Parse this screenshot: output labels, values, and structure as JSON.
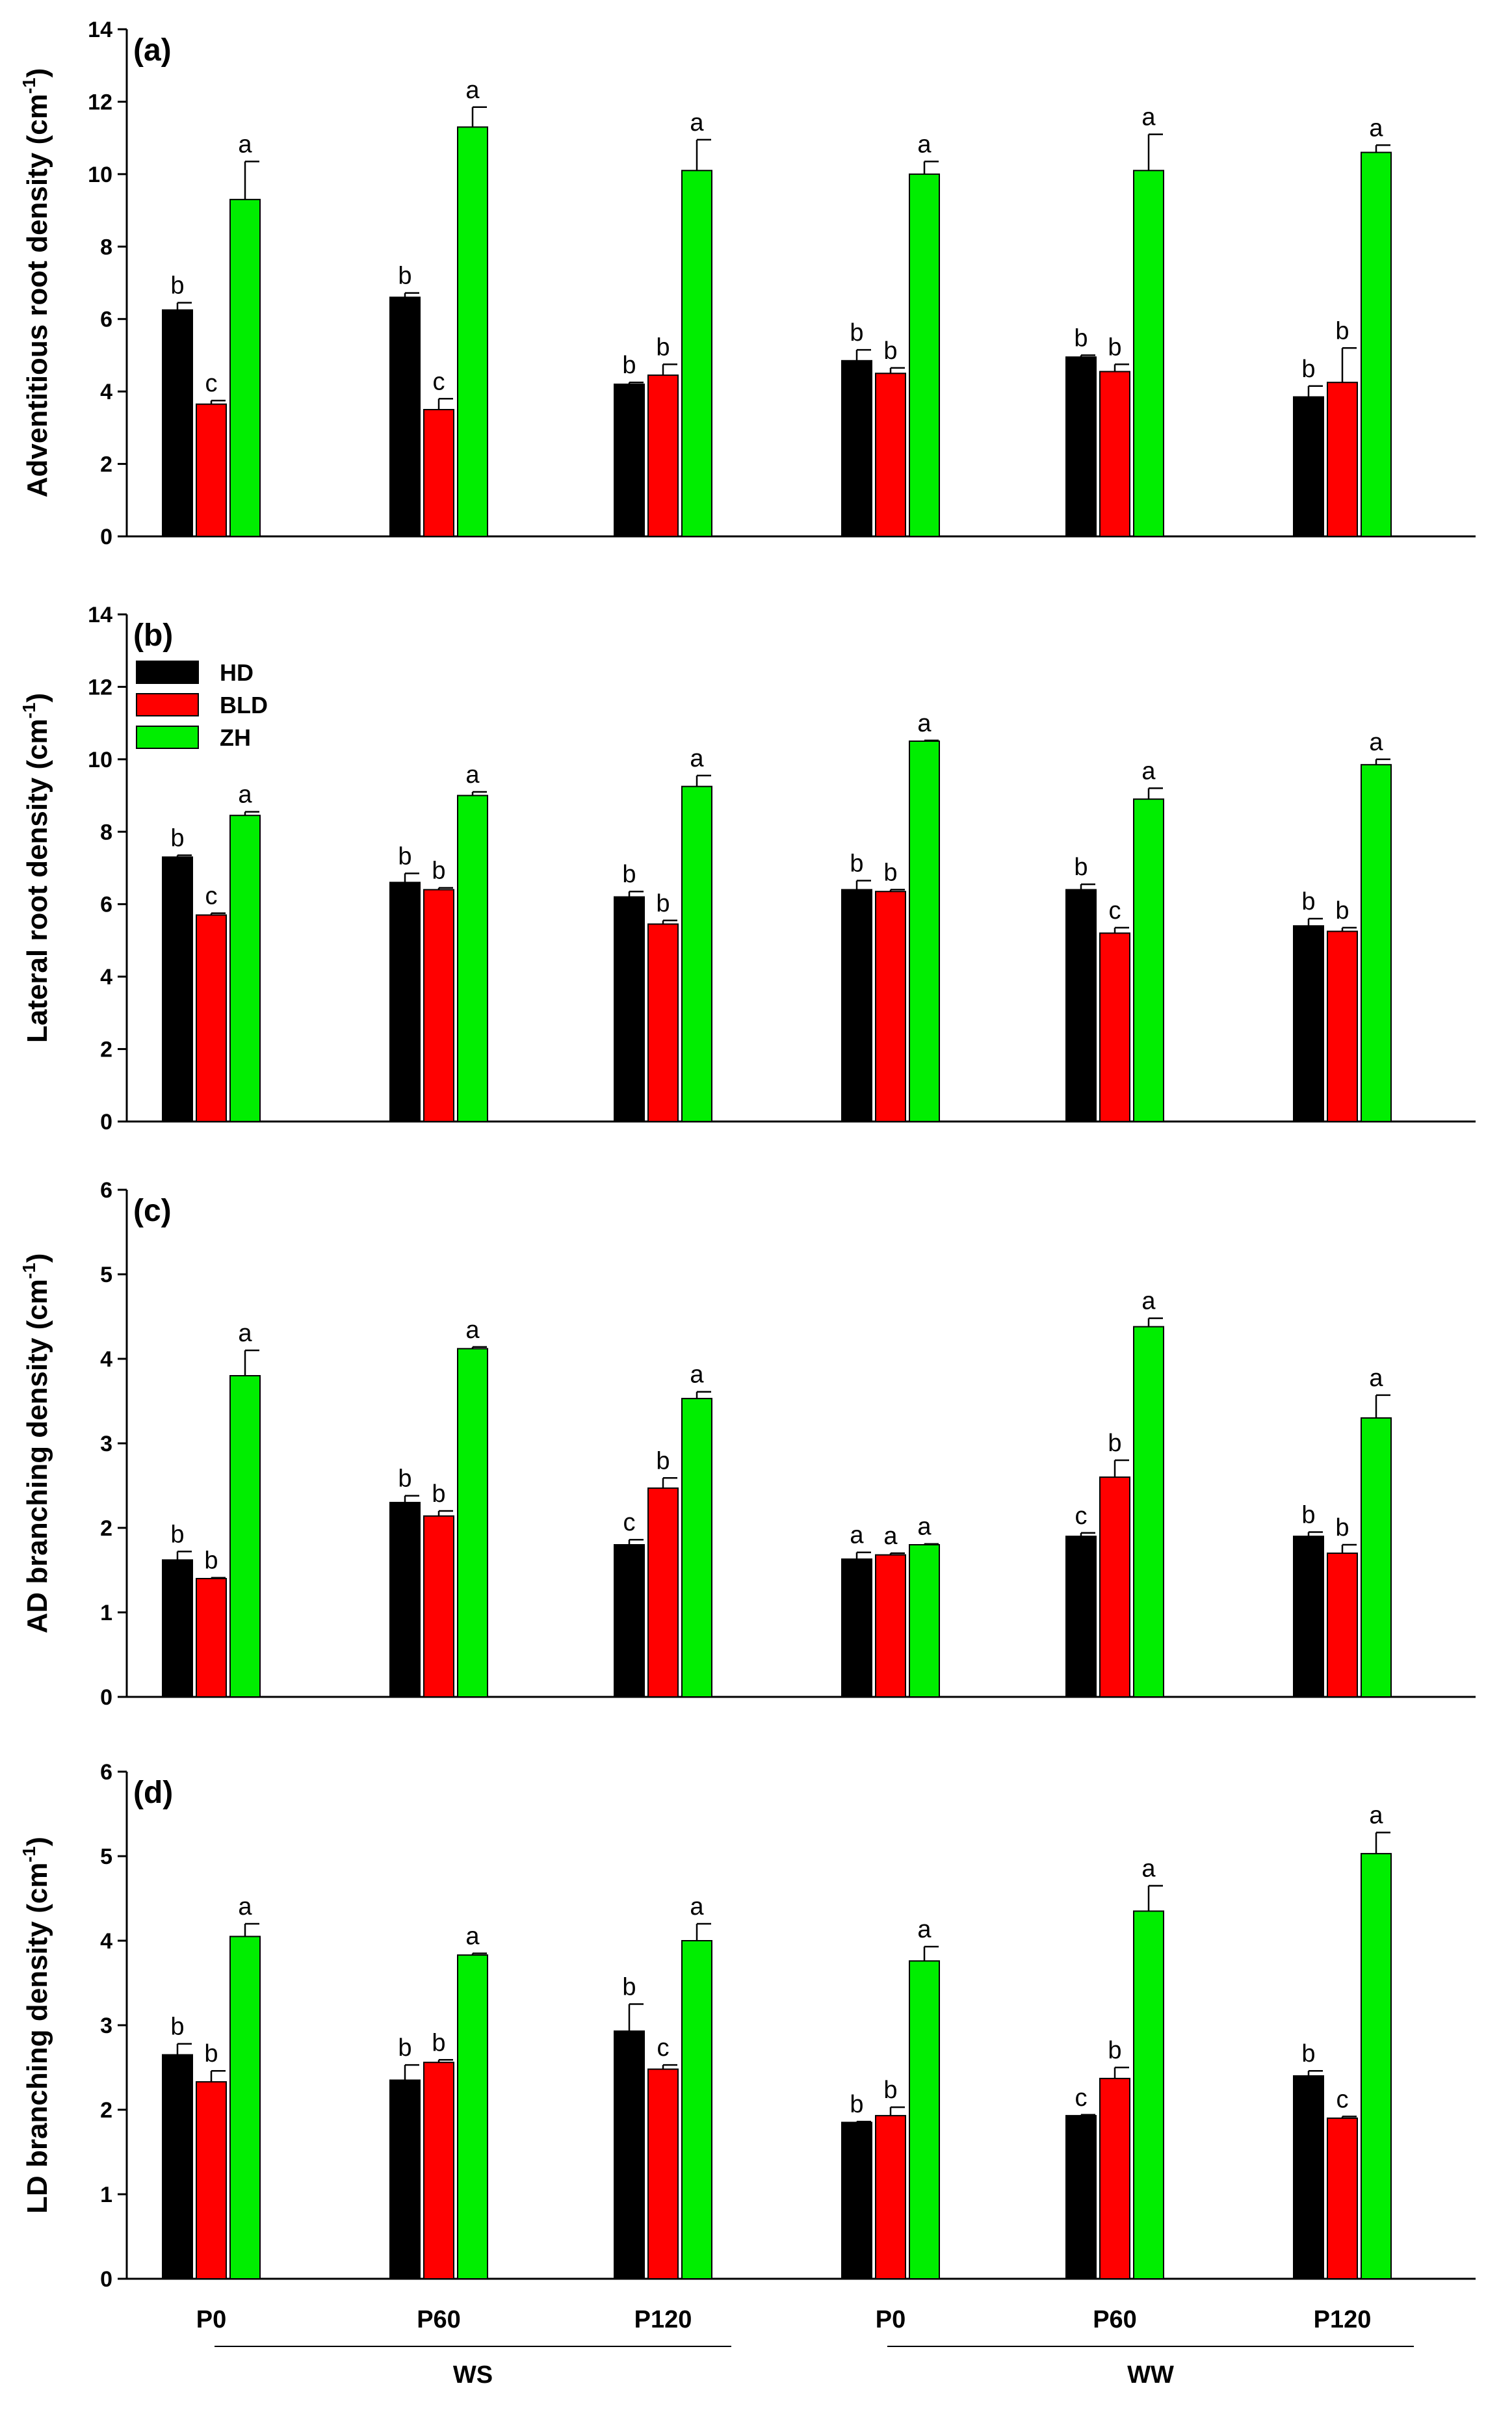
{
  "chart_data": [
    {
      "type": "bar",
      "panel_label": "(a)",
      "ylabel": "Adventitious root density (cm",
      "ylabel_sup": "-1",
      "ylabel_close": ")",
      "ylim": [
        0,
        14
      ],
      "yticks": [
        "0",
        "2",
        "4",
        "6",
        "8",
        "10",
        "12",
        "14"
      ],
      "categories": [
        "P0",
        "P60",
        "P120",
        "P0",
        "P60",
        "P120"
      ],
      "series": [
        {
          "name": "HD",
          "values": [
            6.25,
            6.6,
            4.2,
            4.85,
            4.95,
            3.85
          ],
          "errors": [
            0.2,
            0.12,
            0.05,
            0.3,
            0.05,
            0.3
          ],
          "letters": [
            "b",
            "b",
            "b",
            "b",
            "b",
            "b"
          ]
        },
        {
          "name": "BLD",
          "values": [
            3.65,
            3.5,
            4.45,
            4.5,
            4.55,
            4.25
          ],
          "errors": [
            0.1,
            0.3,
            0.3,
            0.15,
            0.2,
            0.95
          ],
          "letters": [
            "c",
            "c",
            "b",
            "b",
            "b",
            "b"
          ]
        },
        {
          "name": "ZH",
          "values": [
            9.3,
            11.3,
            10.1,
            10.0,
            10.1,
            10.6
          ],
          "errors": [
            1.05,
            0.55,
            0.85,
            0.35,
            1.0,
            0.2
          ],
          "letters": [
            "a",
            "a",
            "a",
            "a",
            "a",
            "a"
          ]
        }
      ]
    },
    {
      "type": "bar",
      "panel_label": "(b)",
      "ylabel": "Lateral root density (cm",
      "ylabel_sup": "-1",
      "ylabel_close": ")",
      "ylim": [
        0,
        14
      ],
      "yticks": [
        "0",
        "2",
        "4",
        "6",
        "8",
        "10",
        "12",
        "14"
      ],
      "categories": [
        "P0",
        "P60",
        "P120",
        "P0",
        "P60",
        "P120"
      ],
      "series": [
        {
          "name": "HD",
          "values": [
            7.3,
            6.6,
            6.2,
            6.4,
            6.4,
            5.4
          ],
          "errors": [
            0.05,
            0.25,
            0.15,
            0.25,
            0.15,
            0.2
          ],
          "letters": [
            "b",
            "b",
            "b",
            "b",
            "b",
            "b"
          ]
        },
        {
          "name": "BLD",
          "values": [
            5.7,
            6.4,
            5.45,
            6.35,
            5.2,
            5.25
          ],
          "errors": [
            0.05,
            0.05,
            0.1,
            0.05,
            0.15,
            0.1
          ],
          "letters": [
            "c",
            "b",
            "b",
            "b",
            "c",
            "b"
          ]
        },
        {
          "name": "ZH",
          "values": [
            8.45,
            9.0,
            9.25,
            10.5,
            8.9,
            9.85
          ],
          "errors": [
            0.1,
            0.1,
            0.3,
            0.02,
            0.3,
            0.15
          ],
          "letters": [
            "a",
            "a",
            "a",
            "a",
            "a",
            "a"
          ]
        }
      ]
    },
    {
      "type": "bar",
      "panel_label": "(c)",
      "ylabel": "AD branching density (cm",
      "ylabel_sup": "-1",
      "ylabel_close": ")",
      "ylim": [
        0,
        6
      ],
      "yticks": [
        "0",
        "1",
        "2",
        "3",
        "4",
        "5",
        "6"
      ],
      "categories": [
        "P0",
        "P60",
        "P120",
        "P0",
        "P60",
        "P120"
      ],
      "series": [
        {
          "name": "HD",
          "values": [
            1.62,
            2.3,
            1.8,
            1.63,
            1.9,
            1.9
          ],
          "errors": [
            0.1,
            0.08,
            0.06,
            0.08,
            0.04,
            0.05
          ],
          "letters": [
            "b",
            "b",
            "c",
            "a",
            "c",
            "b"
          ]
        },
        {
          "name": "BLD",
          "values": [
            1.4,
            2.14,
            2.47,
            1.68,
            2.6,
            1.7
          ],
          "errors": [
            0.01,
            0.06,
            0.12,
            0.02,
            0.2,
            0.1
          ],
          "letters": [
            "b",
            "b",
            "b",
            "a",
            "b",
            "b"
          ]
        },
        {
          "name": "ZH",
          "values": [
            3.8,
            4.12,
            3.53,
            1.8,
            4.38,
            3.3
          ],
          "errors": [
            0.3,
            0.02,
            0.08,
            0.01,
            0.1,
            0.27
          ],
          "letters": [
            "a",
            "a",
            "a",
            "a",
            "a",
            "a"
          ]
        }
      ]
    },
    {
      "type": "bar",
      "panel_label": "(d)",
      "ylabel": "LD branching density (cm",
      "ylabel_sup": "-1",
      "ylabel_close": ")",
      "ylim": [
        0,
        6
      ],
      "yticks": [
        "0",
        "1",
        "2",
        "3",
        "4",
        "5",
        "6"
      ],
      "categories": [
        "P0",
        "P60",
        "P120",
        "P0",
        "P60",
        "P120"
      ],
      "series": [
        {
          "name": "HD",
          "values": [
            2.65,
            2.35,
            2.93,
            1.85,
            1.93,
            2.4
          ],
          "errors": [
            0.13,
            0.18,
            0.32,
            0.01,
            0.01,
            0.06
          ],
          "letters": [
            "b",
            "b",
            "b",
            "b",
            "c",
            "b"
          ]
        },
        {
          "name": "BLD",
          "values": [
            2.33,
            2.56,
            2.48,
            1.93,
            2.37,
            1.9
          ],
          "errors": [
            0.13,
            0.03,
            0.05,
            0.1,
            0.13,
            0.02
          ],
          "letters": [
            "b",
            "b",
            "c",
            "b",
            "b",
            "c"
          ]
        },
        {
          "name": "ZH",
          "values": [
            4.05,
            3.83,
            4.0,
            3.76,
            4.35,
            5.03
          ],
          "errors": [
            0.15,
            0.02,
            0.2,
            0.17,
            0.3,
            0.25
          ],
          "letters": [
            "a",
            "a",
            "a",
            "a",
            "a",
            "a"
          ]
        }
      ]
    }
  ],
  "legend": [
    {
      "name": "HD",
      "color": "#000000"
    },
    {
      "name": "BLD",
      "color": "#ff0000"
    },
    {
      "name": "ZH",
      "color": "#00ee00"
    }
  ],
  "groups": [
    {
      "label": "WS"
    },
    {
      "label": "WW"
    }
  ],
  "colors": {
    "HD": "#000000",
    "BLD": "#ff0000",
    "ZH": "#00ee00"
  }
}
